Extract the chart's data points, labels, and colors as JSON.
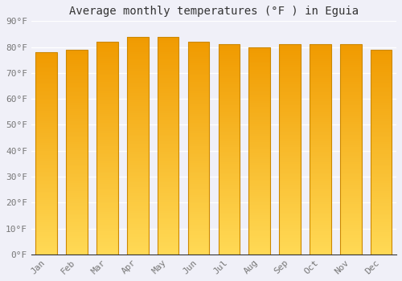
{
  "months": [
    "Jan",
    "Feb",
    "Mar",
    "Apr",
    "May",
    "Jun",
    "Jul",
    "Aug",
    "Sep",
    "Oct",
    "Nov",
    "Dec"
  ],
  "values": [
    78,
    79,
    82,
    84,
    84,
    82,
    81,
    80,
    81,
    81,
    81,
    79
  ],
  "title": "Average monthly temperatures (°F ) in Eguia",
  "ylim": [
    0,
    90
  ],
  "yticks": [
    0,
    10,
    20,
    30,
    40,
    50,
    60,
    70,
    80,
    90
  ],
  "ytick_labels": [
    "0°F",
    "10°F",
    "20°F",
    "30°F",
    "40°F",
    "50°F",
    "60°F",
    "70°F",
    "80°F",
    "90°F"
  ],
  "bar_color_light": "#FFD966",
  "bar_color_dark": "#F5A623",
  "bar_edge_color": "#CC8800",
  "background_color": "#f0f0f8",
  "grid_color": "#ffffff",
  "title_fontsize": 10,
  "tick_fontsize": 8,
  "font_family": "monospace"
}
